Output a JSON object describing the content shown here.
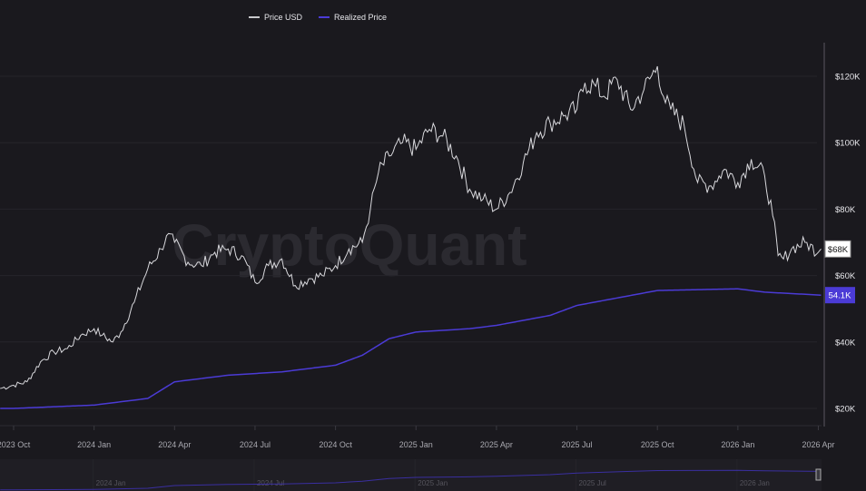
{
  "chart_data": {
    "type": "line",
    "watermark": "CryptoQuant",
    "legend": [
      {
        "name": "Price USD",
        "color": "#c8c8cc"
      },
      {
        "name": "Realized Price",
        "color": "#4b3bd6"
      }
    ],
    "yaxis": {
      "ticks": [
        {
          "v": 20,
          "label": "$20K"
        },
        {
          "v": 40,
          "label": "$40K"
        },
        {
          "v": 60,
          "label": "$60K"
        },
        {
          "v": 80,
          "label": "$80K"
        },
        {
          "v": 100,
          "label": "$100K"
        },
        {
          "v": 120,
          "label": "$120K"
        }
      ],
      "range_k": [
        13,
        130
      ],
      "position": "right"
    },
    "xaxis": {
      "unit": "months since 2023 Oct",
      "ticks": [
        {
          "m": 0,
          "label": "2023 Oct"
        },
        {
          "m": 3,
          "label": "2024 Jan"
        },
        {
          "m": 6,
          "label": "2024 Apr"
        },
        {
          "m": 9,
          "label": "2024 Jul"
        },
        {
          "m": 12,
          "label": "2024 Oct"
        },
        {
          "m": 15,
          "label": "2025 Jan"
        },
        {
          "m": 18,
          "label": "2025 Apr"
        },
        {
          "m": 21,
          "label": "2025 Jul"
        },
        {
          "m": 24,
          "label": "2025 Oct"
        },
        {
          "m": 27,
          "label": "2026 Jan"
        },
        {
          "m": 30,
          "label": "2026 Apr"
        }
      ]
    },
    "navigator_ticks": [
      {
        "m": 3,
        "label": "2024 Jan"
      },
      {
        "m": 9,
        "label": "2024 Jul"
      },
      {
        "m": 15,
        "label": "2025 Jan"
      },
      {
        "m": 21,
        "label": "2025 Jul"
      },
      {
        "m": 27,
        "label": "2026 Jan"
      }
    ],
    "series": [
      {
        "name": "Price USD",
        "unit": "K USD",
        "points": [
          [
            -0.5,
            26
          ],
          [
            0,
            27
          ],
          [
            0.5,
            28
          ],
          [
            1,
            34
          ],
          [
            1.5,
            37
          ],
          [
            2,
            38
          ],
          [
            2.5,
            42
          ],
          [
            3,
            44
          ],
          [
            3.3,
            42
          ],
          [
            3.7,
            40
          ],
          [
            4,
            43
          ],
          [
            4.5,
            52
          ],
          [
            5,
            62
          ],
          [
            5.5,
            68
          ],
          [
            5.7,
            72
          ],
          [
            6,
            70
          ],
          [
            6.5,
            64
          ],
          [
            7,
            63
          ],
          [
            7.5,
            67
          ],
          [
            8,
            68
          ],
          [
            8.5,
            66
          ],
          [
            9,
            58
          ],
          [
            9.5,
            63
          ],
          [
            10,
            65
          ],
          [
            10.5,
            57
          ],
          [
            11,
            59
          ],
          [
            11.5,
            60
          ],
          [
            12,
            63
          ],
          [
            12.5,
            68
          ],
          [
            13,
            70
          ],
          [
            13.3,
            80
          ],
          [
            13.6,
            91
          ],
          [
            14,
            96
          ],
          [
            14.5,
            100
          ],
          [
            15,
            98
          ],
          [
            15.5,
            104
          ],
          [
            16,
            102
          ],
          [
            16.5,
            96
          ],
          [
            17,
            86
          ],
          [
            17.5,
            83
          ],
          [
            18,
            80
          ],
          [
            18.5,
            85
          ],
          [
            19,
            94
          ],
          [
            19.5,
            103
          ],
          [
            20,
            106
          ],
          [
            20.5,
            108
          ],
          [
            21,
            110
          ],
          [
            21.3,
            118
          ],
          [
            21.7,
            117
          ],
          [
            22,
            114
          ],
          [
            22.5,
            119
          ],
          [
            23,
            110
          ],
          [
            23.5,
            116
          ],
          [
            24,
            123
          ],
          [
            24.3,
            112
          ],
          [
            24.5,
            110
          ],
          [
            25,
            105
          ],
          [
            25.5,
            88
          ],
          [
            26,
            87
          ],
          [
            26.3,
            90
          ],
          [
            26.5,
            92
          ],
          [
            27,
            88
          ],
          [
            27.5,
            95
          ],
          [
            28,
            90
          ],
          [
            28.3,
            78
          ],
          [
            28.5,
            66
          ],
          [
            28.7,
            65
          ],
          [
            29,
            68
          ],
          [
            29.5,
            70
          ],
          [
            30,
            67
          ],
          [
            30.1,
            68
          ]
        ]
      },
      {
        "name": "Realized Price",
        "unit": "K USD",
        "points": [
          [
            -0.5,
            20
          ],
          [
            0,
            20
          ],
          [
            3,
            21
          ],
          [
            5,
            23
          ],
          [
            6,
            28
          ],
          [
            8,
            30
          ],
          [
            10,
            31
          ],
          [
            12,
            33
          ],
          [
            13,
            36
          ],
          [
            14,
            41
          ],
          [
            15,
            43
          ],
          [
            17,
            44
          ],
          [
            18,
            45
          ],
          [
            20,
            48
          ],
          [
            21,
            51
          ],
          [
            23,
            54
          ],
          [
            24,
            55.5
          ],
          [
            27,
            56
          ],
          [
            28,
            55
          ],
          [
            30.1,
            54.1
          ]
        ]
      }
    ],
    "last_labels": {
      "price": "$68K",
      "realized": "54.1K"
    }
  }
}
